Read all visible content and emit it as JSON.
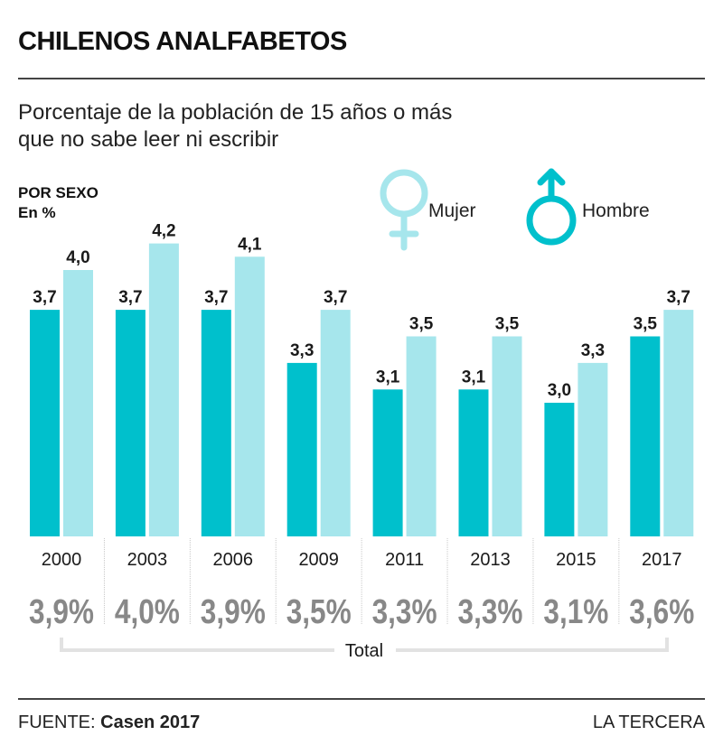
{
  "header": {
    "title": "CHILENOS ANALFABETOS",
    "subtitle_line1": "Porcentaje de la población de 15 años o más",
    "subtitle_line2": "que no sabe leer ni escribir",
    "section_label": "POR SEXO",
    "unit_label": "En %"
  },
  "legend": {
    "female_label": "Mujer",
    "male_label": "Hombre",
    "female_icon": "female-symbol",
    "male_icon": "male-symbol"
  },
  "colors": {
    "hombre": "#00c0cc",
    "mujer": "#a6e6ec",
    "total_text": "#888888",
    "text": "#1a1a1a"
  },
  "chart_data": {
    "type": "bar",
    "title": "CHILENOS ANALFABETOS",
    "subtitle": "Porcentaje de la población de 15 años o más que no sabe leer ni escribir",
    "xlabel": "",
    "ylabel": "En %",
    "categories": [
      "2000",
      "2003",
      "2006",
      "2009",
      "2011",
      "2013",
      "2015",
      "2017"
    ],
    "series": [
      {
        "name": "Hombre",
        "values": [
          3.7,
          3.7,
          3.7,
          3.3,
          3.1,
          3.1,
          3.0,
          3.5
        ],
        "labels": [
          "3,7",
          "3,7",
          "3,7",
          "3,3",
          "3,1",
          "3,1",
          "3,0",
          "3,5"
        ]
      },
      {
        "name": "Mujer",
        "values": [
          4.0,
          4.2,
          4.1,
          3.7,
          3.5,
          3.5,
          3.3,
          3.7
        ],
        "labels": [
          "4,0",
          "4,2",
          "4,1",
          "3,7",
          "3,5",
          "3,5",
          "3,3",
          "3,7"
        ]
      }
    ],
    "totals": {
      "label": "Total",
      "values": [
        3.9,
        4.0,
        3.9,
        3.5,
        3.3,
        3.3,
        3.1,
        3.6
      ],
      "labels": [
        "3,9%",
        "4,0%",
        "3,9%",
        "3,5%",
        "3,3%",
        "3,3%",
        "3,1%",
        "3,6%"
      ]
    },
    "ylim": [
      2.0,
      4.2
    ],
    "grid": false,
    "legend_position": "top-right"
  },
  "footer": {
    "source_prefix": "FUENTE:",
    "source": "Casen 2017",
    "publisher": "LA TERCERA"
  }
}
